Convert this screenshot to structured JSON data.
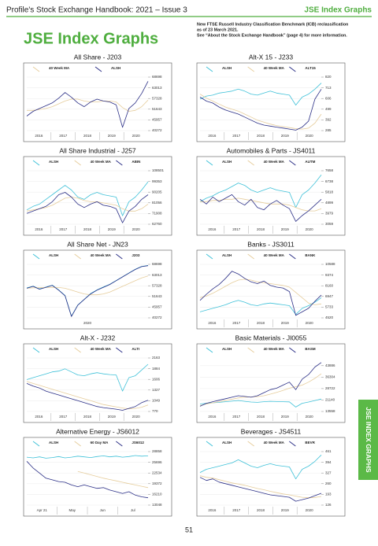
{
  "header": {
    "title": "Profile's Stock Exchange Handbook: 2021 – Issue 3",
    "section": "JSE Index Graphs"
  },
  "page_title": "JSE Index Graphs",
  "note": [
    "New FTSE Russell Industry Classification Benchmark (ICB) reclassification",
    "as of 23 March 2021.",
    "See “About the Stock Exchange Handbook” (page 4) for more information."
  ],
  "side_tab": "JSE INDEX GRAPHS",
  "page_number": "51",
  "chart_data": [
    {
      "type": "line",
      "title": "All Share - J203",
      "x_labels": [
        "2016",
        "2017",
        "2018",
        "2019",
        "2020"
      ],
      "series": [
        {
          "name": "40 Week MA",
          "color": "#e6cd9c",
          "values": [
            51000,
            51000,
            51500,
            52000,
            53000,
            54500,
            56000,
            57000,
            57000,
            56000,
            55500,
            55500,
            56000,
            56000,
            55500,
            52500,
            50500,
            51000,
            53000,
            56500
          ]
        },
        {
          "name": "ALSH",
          "color": "#2b2f86",
          "values": [
            48000,
            50500,
            52000,
            53500,
            55000,
            57500,
            60500,
            58000,
            55000,
            53000,
            55500,
            57000,
            56000,
            55500,
            54000,
            42000,
            52000,
            55000,
            60000,
            66500
          ]
        }
      ],
      "ylim": [
        40272,
        68698
      ],
      "yticks": [
        40272,
        45957,
        51643,
        57328,
        63013,
        68698
      ]
    },
    {
      "type": "line",
      "title": "Alt-X 15 - J233",
      "x_labels": [
        "2016",
        "2017",
        "2018",
        "2019",
        "2020"
      ],
      "series": [
        {
          "name": "ALSH",
          "color": "#3fc1d8",
          "values": [
            600,
            630,
            640,
            660,
            670,
            680,
            700,
            680,
            650,
            640,
            660,
            680,
            660,
            650,
            640,
            540,
            620,
            650,
            700,
            760
          ]
        },
        {
          "name": "40 Week MA",
          "color": "#e6cd9c",
          "values": [
            650,
            610,
            580,
            550,
            520,
            500,
            480,
            450,
            420,
            390,
            370,
            350,
            335,
            325,
            315,
            305,
            300,
            310,
            360,
            450
          ]
        },
        {
          "name": "ALT15",
          "color": "#2b2f86",
          "values": [
            620,
            580,
            560,
            520,
            490,
            470,
            450,
            420,
            390,
            360,
            340,
            330,
            320,
            310,
            300,
            290,
            320,
            380,
            600,
            700
          ]
        }
      ],
      "ylim": [
        285,
        820
      ],
      "yticks": [
        285,
        392,
        499,
        606,
        713,
        820
      ]
    },
    {
      "type": "line",
      "title": "All Share Industrial - J257",
      "x_labels": [
        "2016",
        "2017",
        "2018",
        "2019",
        "2020"
      ],
      "series": [
        {
          "name": "ALSH",
          "color": "#3fc1d8",
          "values": [
            75000,
            78000,
            80000,
            84000,
            88000,
            92000,
            96000,
            92000,
            86000,
            84000,
            88000,
            90000,
            88000,
            87000,
            86000,
            70000,
            82000,
            86000,
            92000,
            99000
          ]
        },
        {
          "name": "40 Week MA",
          "color": "#e6cd9c",
          "values": [
            74000,
            75000,
            76000,
            77000,
            79000,
            82000,
            85000,
            86000,
            85000,
            83000,
            82000,
            82000,
            81000,
            80000,
            79000,
            76000,
            74000,
            74000,
            76000,
            80000
          ]
        },
        {
          "name": "ABIN",
          "color": "#2b2f86",
          "values": [
            72000,
            74000,
            76000,
            78000,
            82000,
            88000,
            90000,
            86000,
            80000,
            77000,
            80000,
            82000,
            79000,
            78000,
            76000,
            64000,
            74000,
            78000,
            84000,
            88000
          ]
        }
      ],
      "ylim": [
        62760,
        108501
      ],
      "yticks": [
        62760,
        71908,
        81056,
        90205,
        99353,
        108501
      ]
    },
    {
      "type": "line",
      "title": "Automobiles & Parts - JS4011",
      "x_labels": [
        "2016",
        "2017",
        "2018",
        "2019",
        "2020"
      ],
      "series": [
        {
          "name": "ALSH",
          "color": "#3fc1d8",
          "values": [
            5000,
            5300,
            5500,
            5800,
            6000,
            6300,
            6600,
            6400,
            6000,
            5800,
            6000,
            6200,
            6000,
            5900,
            5800,
            4500,
            5600,
            6000,
            6600,
            7300
          ]
        },
        {
          "name": "40 Week MA",
          "color": "#e6cd9c",
          "values": [
            5000,
            5000,
            5100,
            5100,
            5200,
            5200,
            5300,
            5200,
            5100,
            5000,
            4900,
            4800,
            4800,
            4800,
            4700,
            4500,
            4300,
            4200,
            4200,
            4400
          ]
        },
        {
          "name": "AUTM",
          "color": "#2b2f86",
          "values": [
            5200,
            4800,
            5400,
            5000,
            5300,
            5600,
            5000,
            4700,
            5200,
            4500,
            4300,
            4800,
            5100,
            4700,
            4400,
            3300,
            3800,
            4200,
            4700,
            5200
          ]
        }
      ],
      "ylim": [
        3059,
        7658
      ],
      "yticks": [
        3059,
        3979,
        4899,
        5818,
        6738,
        7658
      ]
    },
    {
      "type": "line",
      "title": "All Share Net - JN23",
      "x_labels": [
        "2020"
      ],
      "series": [
        {
          "name": "ALSH",
          "color": "#3fc1d8",
          "values": [
            56200,
            57100,
            55700,
            56600,
            57600,
            55100,
            52200,
            41200,
            47100,
            50100,
            53200,
            55100,
            56700,
            58100,
            60100,
            62100,
            64100,
            66100,
            67600,
            68100
          ]
        },
        {
          "name": "40 Week MA",
          "color": "#e6cd9c",
          "values": [
            56000,
            56200,
            56300,
            56400,
            56500,
            56400,
            56000,
            55000,
            54000,
            53000,
            52500,
            52500,
            53000,
            54000,
            55500,
            57000,
            58500,
            60000,
            61500,
            62500
          ]
        },
        {
          "name": "J203",
          "color": "#2b2f86",
          "values": [
            56000,
            57000,
            55500,
            56500,
            57500,
            55000,
            52000,
            41000,
            47000,
            50000,
            53000,
            55000,
            56500,
            58000,
            60000,
            62000,
            64000,
            66000,
            67500,
            68000
          ]
        }
      ],
      "ylim": [
        40272,
        68698
      ],
      "yticks": [
        40272,
        45957,
        51643,
        57328,
        63013,
        68698
      ]
    },
    {
      "type": "line",
      "title": "Banks - JS3011",
      "x_labels": [
        "2016",
        "2017",
        "2018",
        "2019",
        "2020"
      ],
      "series": [
        {
          "name": "ALSH",
          "color": "#3fc1d8",
          "values": [
            5200,
            5400,
            5600,
            5800,
            6000,
            6300,
            6500,
            6300,
            6000,
            5900,
            6100,
            6200,
            6100,
            6000,
            5900,
            4900,
            5600,
            5900,
            6300,
            6800
          ]
        },
        {
          "name": "40 Week MA",
          "color": "#e6cd9c",
          "values": [
            6800,
            7000,
            7300,
            7700,
            8100,
            8500,
            8800,
            8900,
            8800,
            8600,
            8500,
            8400,
            8300,
            8200,
            8000,
            7400,
            6800,
            6200,
            6000,
            6100
          ]
        },
        {
          "name": "BANK",
          "color": "#2b2f86",
          "values": [
            6500,
            7200,
            7800,
            8300,
            9000,
            9800,
            9500,
            9000,
            8600,
            8400,
            8700,
            8200,
            8000,
            7900,
            7500,
            4800,
            5200,
            5600,
            6400,
            7100
          ]
        }
      ],
      "ylim": [
        4520,
        10588
      ],
      "yticks": [
        4520,
        5733,
        6947,
        8160,
        9374,
        10588
      ]
    },
    {
      "type": "line",
      "title": "Alt-X - J232",
      "x_labels": [
        "2016",
        "2017",
        "2018",
        "2019",
        "2020"
      ],
      "series": [
        {
          "name": "ALSH",
          "color": "#3fc1d8",
          "values": [
            1600,
            1650,
            1700,
            1750,
            1800,
            1820,
            1880,
            1800,
            1720,
            1700,
            1750,
            1780,
            1750,
            1730,
            1720,
            1300,
            1650,
            1700,
            1850,
            2000
          ]
        },
        {
          "name": "40 Week MA",
          "color": "#e6cd9c",
          "values": [
            1550,
            1500,
            1450,
            1400,
            1350,
            1300,
            1250,
            1200,
            1150,
            1100,
            1050,
            1000,
            950,
            920,
            890,
            860,
            840,
            850,
            880,
            940
          ]
        },
        {
          "name": "ALTI",
          "color": "#2b2f86",
          "values": [
            1500,
            1430,
            1380,
            1300,
            1250,
            1200,
            1150,
            1100,
            1050,
            1000,
            950,
            900,
            870,
            850,
            830,
            800,
            850,
            900,
            1000,
            1060
          ]
        }
      ],
      "ylim": [
        770,
        2163
      ],
      "yticks": [
        770,
        1049,
        1327,
        1606,
        1884,
        2163
      ]
    },
    {
      "type": "line",
      "title": "Basic Materials - JI0055",
      "x_labels": [
        "2016",
        "2017",
        "2018",
        "2019",
        "2020"
      ],
      "series": [
        {
          "name": "ALSH",
          "color": "#3fc1d8",
          "values": [
            18500,
            19000,
            19300,
            19600,
            20000,
            20400,
            20800,
            20300,
            19800,
            19600,
            20000,
            20300,
            20100,
            20000,
            19900,
            16500,
            19000,
            19800,
            20800,
            21800
          ]
        },
        {
          "name": "40 Week MA",
          "color": "#e6cd9c",
          "values": [
            17500,
            18500,
            19300,
            20000,
            20800,
            21700,
            22500,
            23000,
            23200,
            23400,
            24000,
            25000,
            26200,
            27500,
            29000,
            30000,
            31000,
            33000,
            35500,
            38500
          ]
        },
        {
          "name": "BASM",
          "color": "#2b2f86",
          "values": [
            17000,
            19000,
            20000,
            21000,
            22000,
            23000,
            24000,
            23500,
            23000,
            24000,
            26000,
            28000,
            29000,
            31000,
            33000,
            28000,
            35000,
            38000,
            43000,
            46000
          ]
        }
      ],
      "ylim": [
        13558,
        49000
      ],
      "yticks": [
        13558,
        21140,
        28722,
        36304,
        43886
      ]
    },
    {
      "type": "line",
      "title": "Alternative Energy - JS6012",
      "x_labels": [
        "Apr 21",
        "May",
        "Jun",
        "Jul"
      ],
      "series": [
        {
          "name": "ALSH",
          "color": "#3fc1d8",
          "values": [
            27200,
            27000,
            27300,
            26900,
            27100,
            27400,
            27000,
            27200,
            27500,
            27300,
            27100,
            27400,
            27600,
            27300,
            27500,
            27200,
            27400,
            27700,
            27500,
            27600
          ]
        },
        {
          "name": "60 Day MA",
          "color": "#e6cd9c",
          "values": [
            null,
            null,
            null,
            null,
            null,
            null,
            null,
            null,
            23000,
            22500,
            22000,
            21500,
            21000,
            20600,
            20200,
            19800,
            19400,
            19000,
            18600,
            18200
          ]
        },
        {
          "name": "JS6012",
          "color": "#2b2f86",
          "values": [
            26000,
            24000,
            22500,
            21000,
            20500,
            20000,
            19800,
            19000,
            18500,
            19000,
            18500,
            18000,
            18200,
            17500,
            17000,
            16500,
            17000,
            16000,
            15500,
            15200
          ]
        }
      ],
      "ylim": [
        13048,
        28858
      ],
      "yticks": [
        13048,
        16210,
        19372,
        22534,
        25696,
        28858
      ]
    },
    {
      "type": "line",
      "title": "Beverages - JS4511",
      "x_labels": [
        "2016",
        "2017",
        "2018",
        "2019",
        "2020"
      ],
      "series": [
        {
          "name": "ALSH",
          "color": "#3fc1d8",
          "values": [
            330,
            350,
            360,
            370,
            380,
            390,
            410,
            390,
            370,
            360,
            375,
            385,
            375,
            370,
            365,
            290,
            350,
            370,
            400,
            440
          ]
        },
        {
          "name": "40 Week MA",
          "color": "#e6cd9c",
          "values": [
            310,
            300,
            295,
            285,
            275,
            265,
            258,
            250,
            240,
            230,
            222,
            212,
            204,
            196,
            190,
            182,
            175,
            172,
            174,
            180
          ]
        },
        {
          "name": "BEVR",
          "color": "#2b2f86",
          "values": [
            300,
            280,
            290,
            270,
            260,
            250,
            240,
            230,
            220,
            210,
            200,
            190,
            185,
            180,
            175,
            150,
            160,
            170,
            185,
            200
          ]
        }
      ],
      "ylim": [
        126,
        461
      ],
      "yticks": [
        126,
        193,
        260,
        327,
        394,
        461
      ]
    }
  ]
}
